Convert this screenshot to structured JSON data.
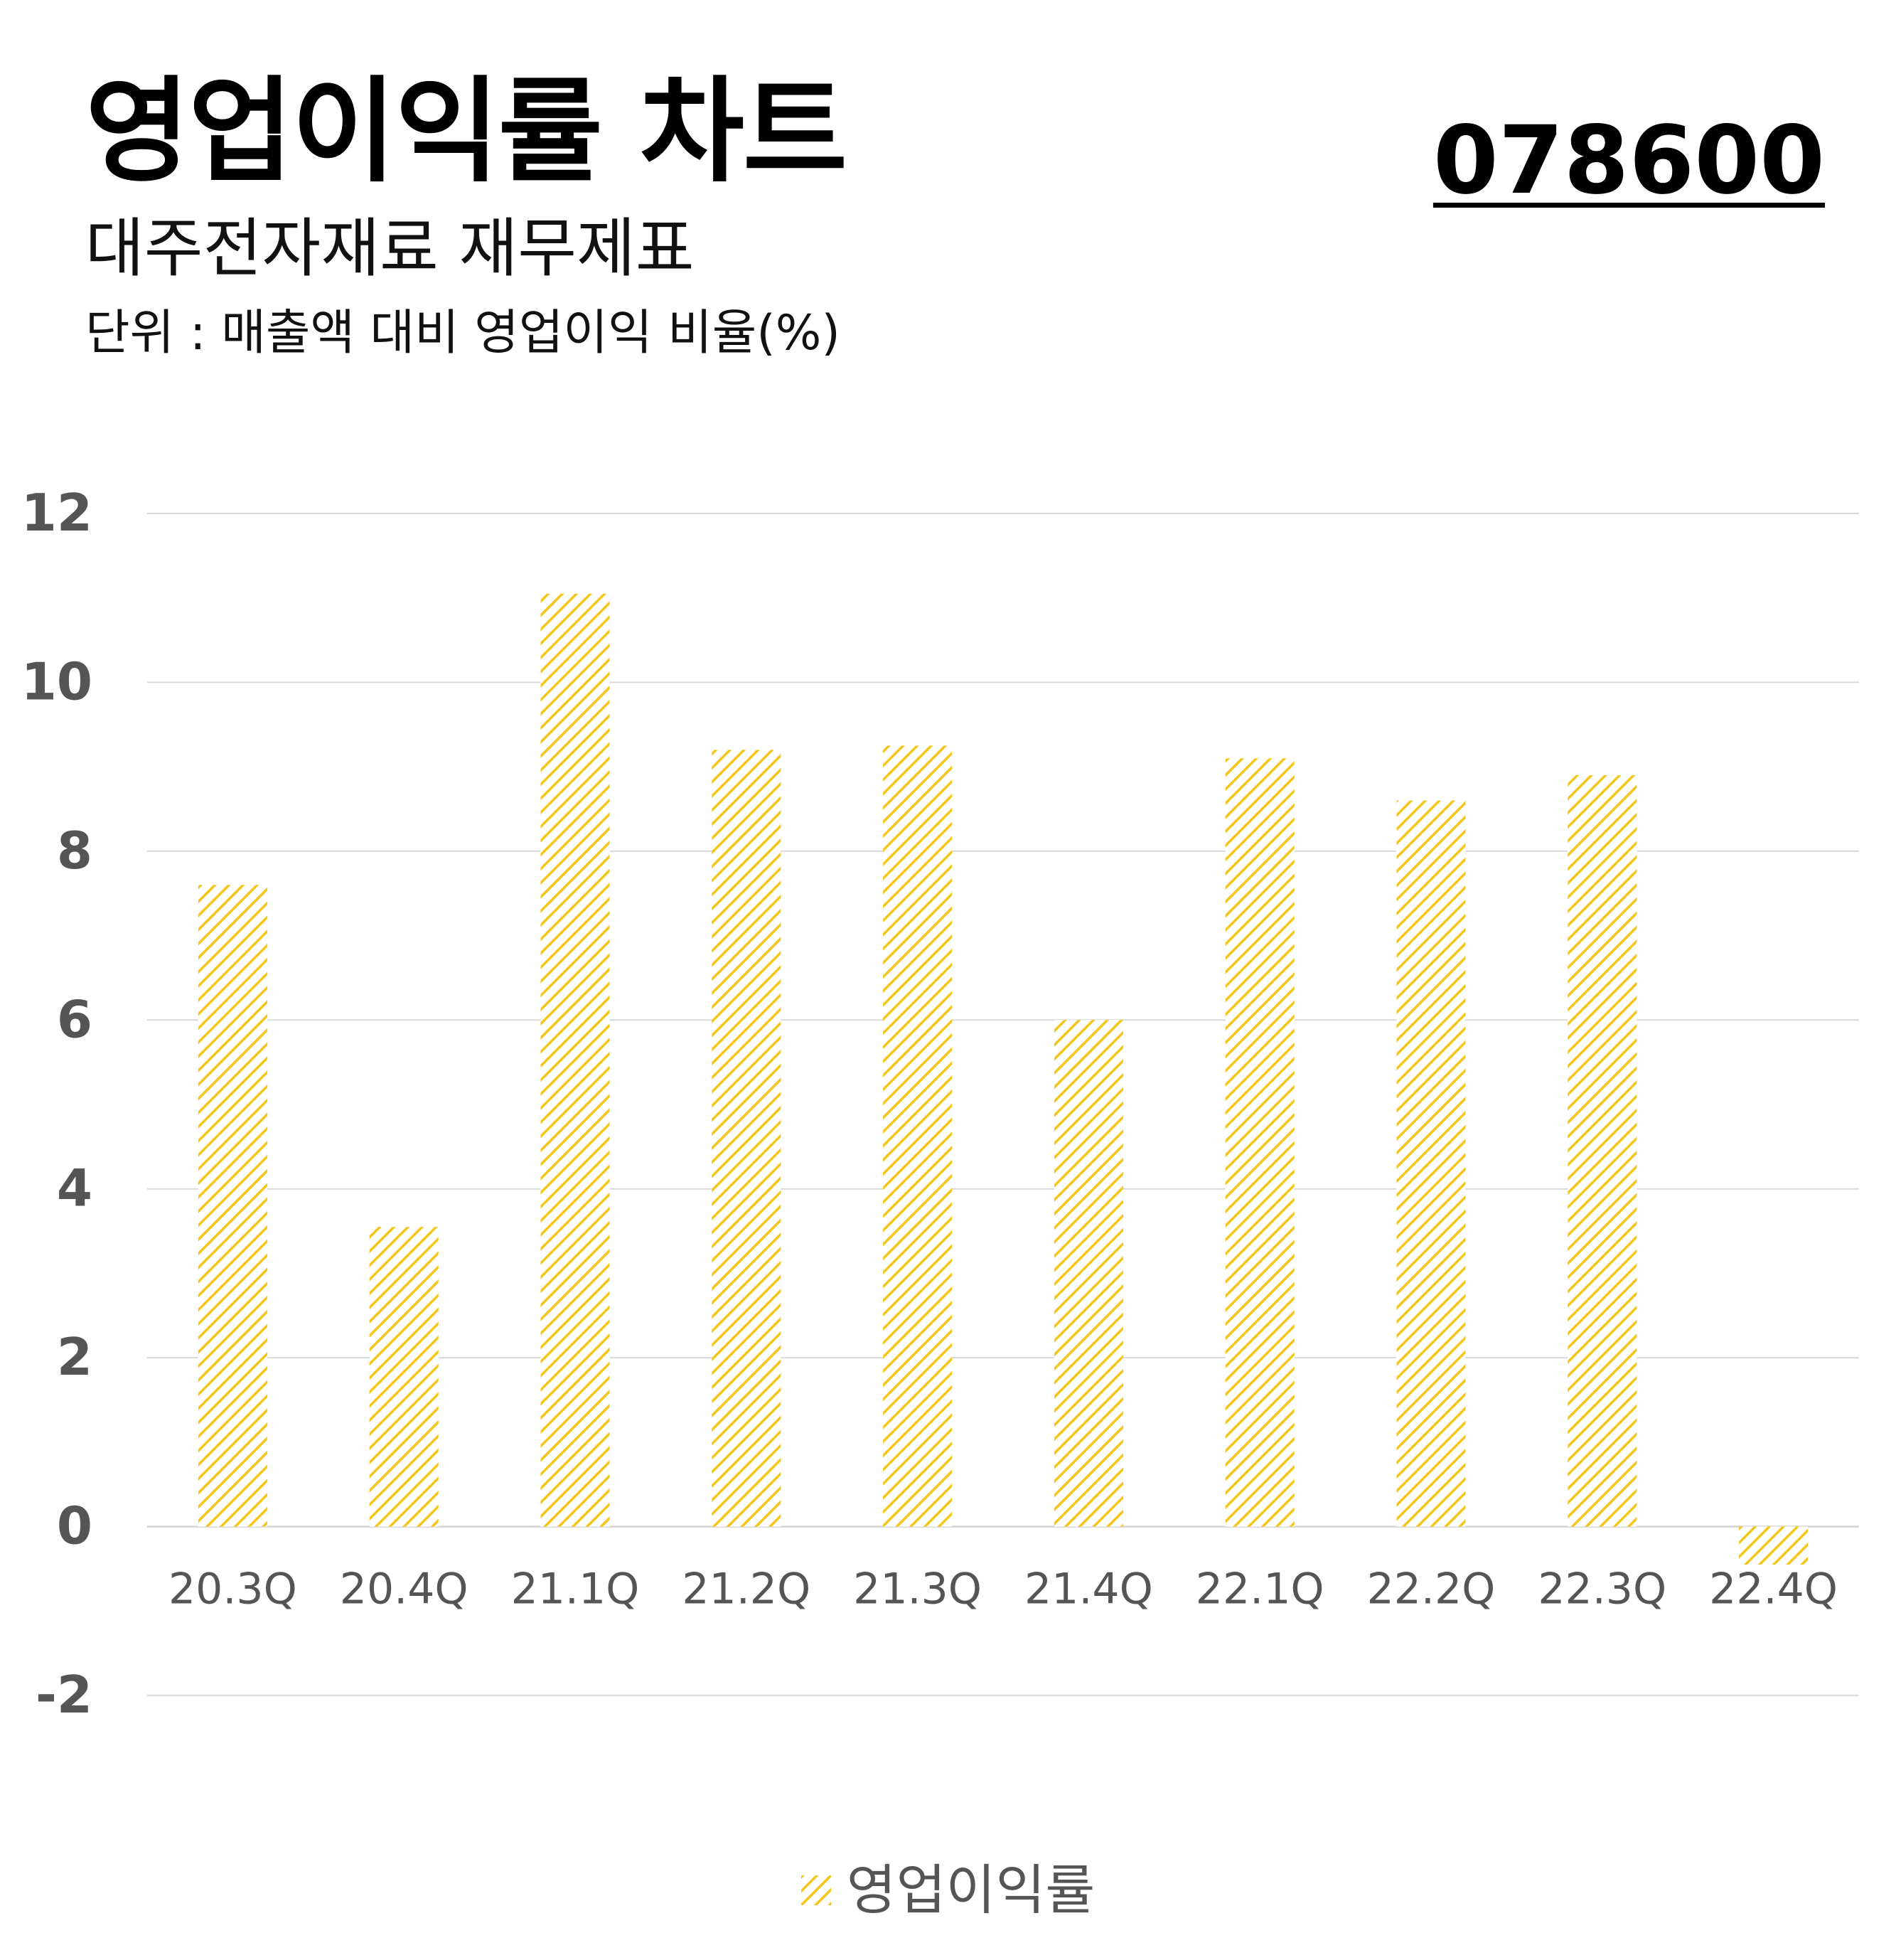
{
  "header": {
    "title": "영업이익률 차트",
    "subtitle": "대주전자재료 재무제표",
    "unit": "단위 : 매출액 대비 영업이익 비율(%)",
    "code": "078600"
  },
  "colors": {
    "bar": "#F5C518",
    "grid": "#D9D9D9",
    "axis_text": "#555555"
  },
  "chart_data": {
    "type": "bar",
    "categories": [
      "20.3Q",
      "20.4Q",
      "21.1Q",
      "21.2Q",
      "21.3Q",
      "21.4Q",
      "22.1Q",
      "22.2Q",
      "22.3Q",
      "22.4Q"
    ],
    "series": [
      {
        "name": "영업이익률",
        "values": [
          7.6,
          3.55,
          11.05,
          9.2,
          9.25,
          6.0,
          9.1,
          8.6,
          8.9,
          -0.45
        ]
      }
    ],
    "yticks": [
      "12",
      "10",
      "8",
      "6",
      "4",
      "2",
      "0",
      "-2"
    ],
    "ylim": [
      -2,
      12
    ],
    "grid": true,
    "legend_position": "bottom",
    "bar_fill": "diagonal-hatch"
  }
}
